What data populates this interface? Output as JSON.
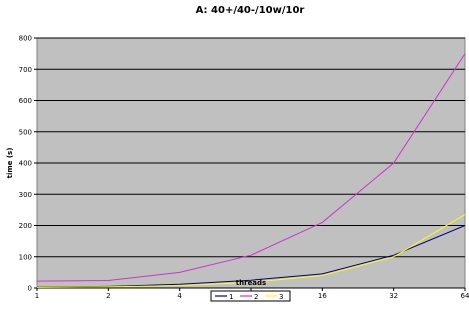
{
  "chart_data": {
    "type": "line",
    "title": "A: 40+/40-/10w/10r",
    "xlabel": "threads",
    "ylabel": "time (s)",
    "x_scale": "log2",
    "x": [
      1,
      2,
      4,
      8,
      16,
      32,
      64
    ],
    "x_tick_labels": [
      "1",
      "2",
      "4",
      "8",
      "16",
      "32",
      "64"
    ],
    "ylim": [
      0,
      800
    ],
    "y_ticks": [
      0,
      100,
      200,
      300,
      400,
      500,
      600,
      700,
      800
    ],
    "grid": "horizontal",
    "plot_background": "#c0c0c0",
    "legend_position": "bottom",
    "series": [
      {
        "name": "1",
        "color": "#000080",
        "values": [
          3,
          5,
          12,
          25,
          45,
          105,
          200
        ]
      },
      {
        "name": "2",
        "color": "#cc33cc",
        "values": [
          22,
          24,
          50,
          105,
          210,
          400,
          750
        ]
      },
      {
        "name": "3",
        "color": "#ffff00",
        "values": [
          2,
          4,
          8,
          18,
          40,
          100,
          235
        ]
      }
    ]
  }
}
